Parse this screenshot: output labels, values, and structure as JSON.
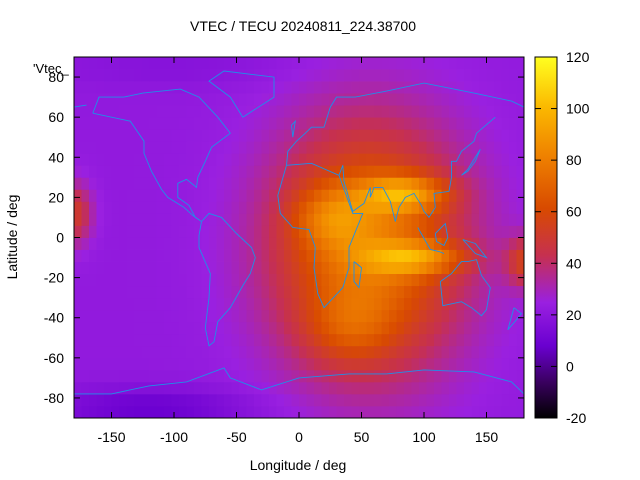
{
  "chart_data": {
    "type": "heatmap",
    "title": "VTEC / TECU 20240811_224.38700",
    "xlabel": "Longitude / deg",
    "ylabel": "Latitude / deg",
    "legend_key": "'Vtec_",
    "xlim": [
      -180,
      180
    ],
    "ylim": [
      -90,
      90
    ],
    "x_ticks": [
      -150,
      -100,
      -50,
      0,
      50,
      100,
      150
    ],
    "y_ticks": [
      -80,
      -60,
      -40,
      -20,
      0,
      20,
      40,
      60,
      80
    ],
    "colorbar": {
      "min": -20,
      "max": 120,
      "ticks": [
        -20,
        0,
        20,
        40,
        60,
        80,
        100,
        120
      ],
      "palette": "black-purple-red-orange-yellow"
    },
    "grid": false,
    "coastlines_color": "#1e90e8",
    "field_description": {
      "background_tecu": 22,
      "polar_south_tecu": 10,
      "peaks": [
        {
          "lon": 85,
          "lat": 22,
          "tecu": 115
        },
        {
          "lon": 90,
          "lat": -10,
          "tecu": 112
        },
        {
          "lon": 40,
          "lat": -45,
          "tecu": 70
        },
        {
          "lon": -170,
          "lat": 15,
          "tecu": 55
        }
      ]
    }
  }
}
